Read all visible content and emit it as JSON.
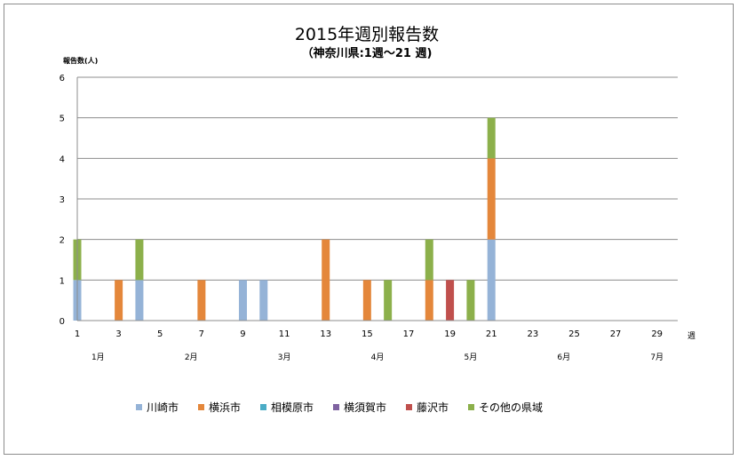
{
  "chart_data": {
    "type": "bar",
    "stacked": true,
    "title": "2015年週別報告数",
    "subtitle": "（神奈川県:1週〜21 週)",
    "ylabel": "報告数(人)",
    "xlabel": "週",
    "ylim": [
      0,
      6
    ],
    "yticks": [
      0,
      1,
      2,
      3,
      4,
      5,
      6
    ],
    "xlim": [
      1,
      30
    ],
    "xticks": [
      "1",
      "3",
      "5",
      "7",
      "9",
      "11",
      "13",
      "15",
      "17",
      "19",
      "21",
      "23",
      "25",
      "27",
      "29"
    ],
    "months": [
      {
        "label": "1月",
        "week": 2
      },
      {
        "label": "2月",
        "week": 6.5
      },
      {
        "label": "3月",
        "week": 11
      },
      {
        "label": "4月",
        "week": 15.5
      },
      {
        "label": "5月",
        "week": 20
      },
      {
        "label": "6月",
        "week": 24.5
      },
      {
        "label": "7月",
        "week": 29
      }
    ],
    "grid": true,
    "legend_position": "bottom",
    "series": [
      {
        "name": "川崎市",
        "color": "#95b3d7",
        "points": [
          {
            "week": 1,
            "value": 1
          },
          {
            "week": 4,
            "value": 1
          },
          {
            "week": 9,
            "value": 1
          },
          {
            "week": 10,
            "value": 1
          },
          {
            "week": 21,
            "value": 2
          }
        ]
      },
      {
        "name": "横浜市",
        "color": "#e4873b",
        "points": [
          {
            "week": 3,
            "value": 1
          },
          {
            "week": 7,
            "value": 1
          },
          {
            "week": 13,
            "value": 2
          },
          {
            "week": 15,
            "value": 1
          },
          {
            "week": 18,
            "value": 1
          },
          {
            "week": 21,
            "value": 2
          }
        ]
      },
      {
        "name": "相模原市",
        "color": "#4bacc6",
        "points": []
      },
      {
        "name": "横須賀市",
        "color": "#7f63a1",
        "points": []
      },
      {
        "name": "藤沢市",
        "color": "#c0504d",
        "points": [
          {
            "week": 19,
            "value": 1
          }
        ]
      },
      {
        "name": "その他の県域",
        "color": "#8cb04b",
        "points": [
          {
            "week": 1,
            "value": 1
          },
          {
            "week": 4,
            "value": 1
          },
          {
            "week": 16,
            "value": 1
          },
          {
            "week": 18,
            "value": 1
          },
          {
            "week": 20,
            "value": 1
          },
          {
            "week": 21,
            "value": 1
          }
        ]
      }
    ]
  }
}
